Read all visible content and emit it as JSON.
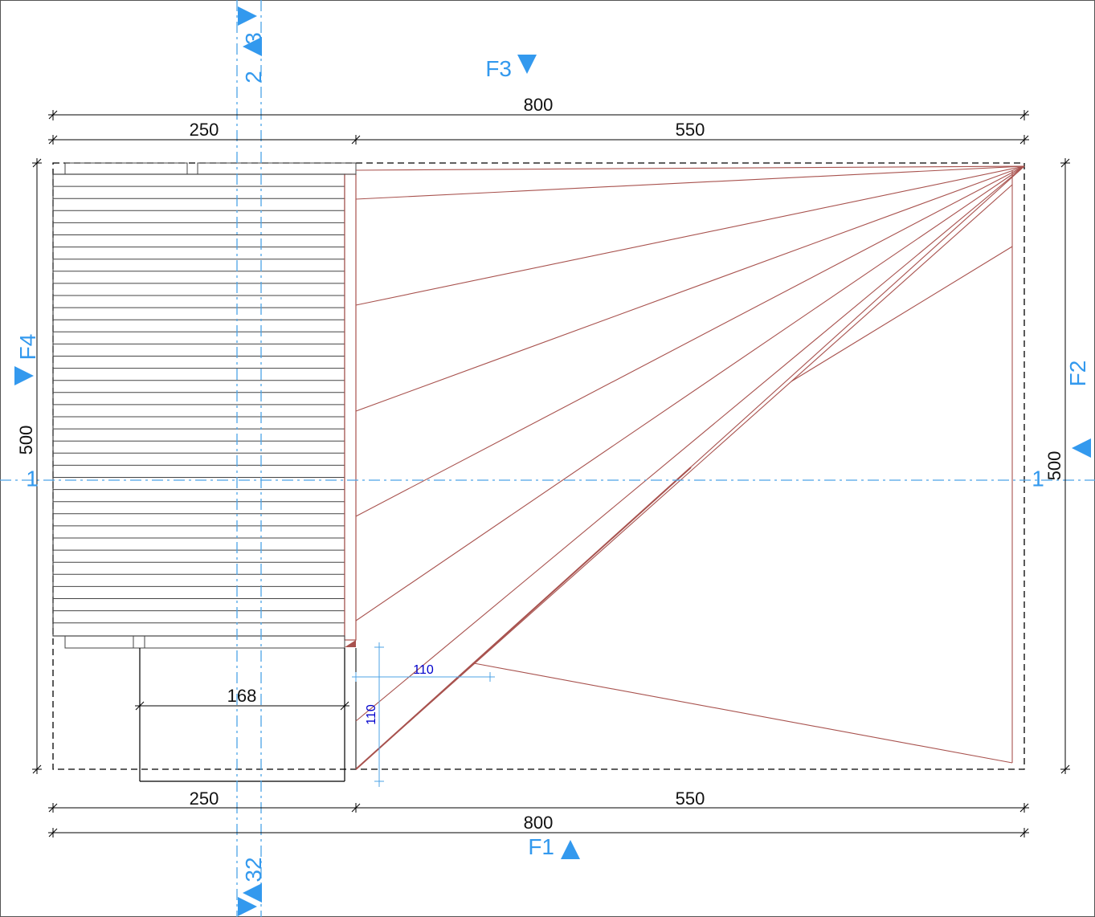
{
  "colors": {
    "line": "#000000",
    "red": "#a8524e",
    "axis": "#4ca3e6",
    "marker": "#3399ee",
    "annot": "#0000cc"
  },
  "dims": {
    "top_total": "800",
    "top_left": "250",
    "top_right": "550",
    "bottom_left": "250",
    "bottom_right": "550",
    "bottom_total": "800",
    "left_height": "500",
    "right_height": "500",
    "step_width": "168",
    "small_h": "110",
    "small_v": "110"
  },
  "sections": {
    "F1": "F1",
    "F2": "F2",
    "F3": "F3",
    "F4": "F4"
  },
  "axes": {
    "a1_left": "1",
    "a1_right": "1",
    "a2_top": "2",
    "a3_top": "3",
    "a32_bottom": "32"
  }
}
